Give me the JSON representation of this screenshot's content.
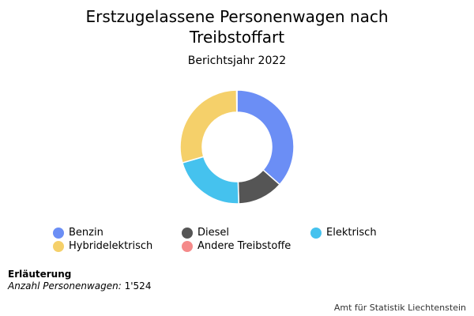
{
  "chart_data": {
    "type": "pie",
    "title_lines": [
      "Erstzugelassene Personenwagen nach",
      "Treibstoffart"
    ],
    "subtitle": "Berichtsjahr 2022",
    "categories": [
      "Benzin",
      "Diesel",
      "Elektrisch",
      "Hybridelektrisch",
      "Andere Treibstoffe"
    ],
    "values": [
      36.5,
      13.0,
      21.0,
      29.4,
      0.1
    ],
    "colors": [
      "#6b8ef5",
      "#555555",
      "#45c2ee",
      "#f5d06a",
      "#f58a8a"
    ],
    "donut": true,
    "legend_position": "bottom"
  },
  "note": {
    "heading": "Erläuterung",
    "label": "Anzahl Personenwagen:",
    "value": "1'524"
  },
  "credit": "Amt für Statistik Liechtenstein"
}
